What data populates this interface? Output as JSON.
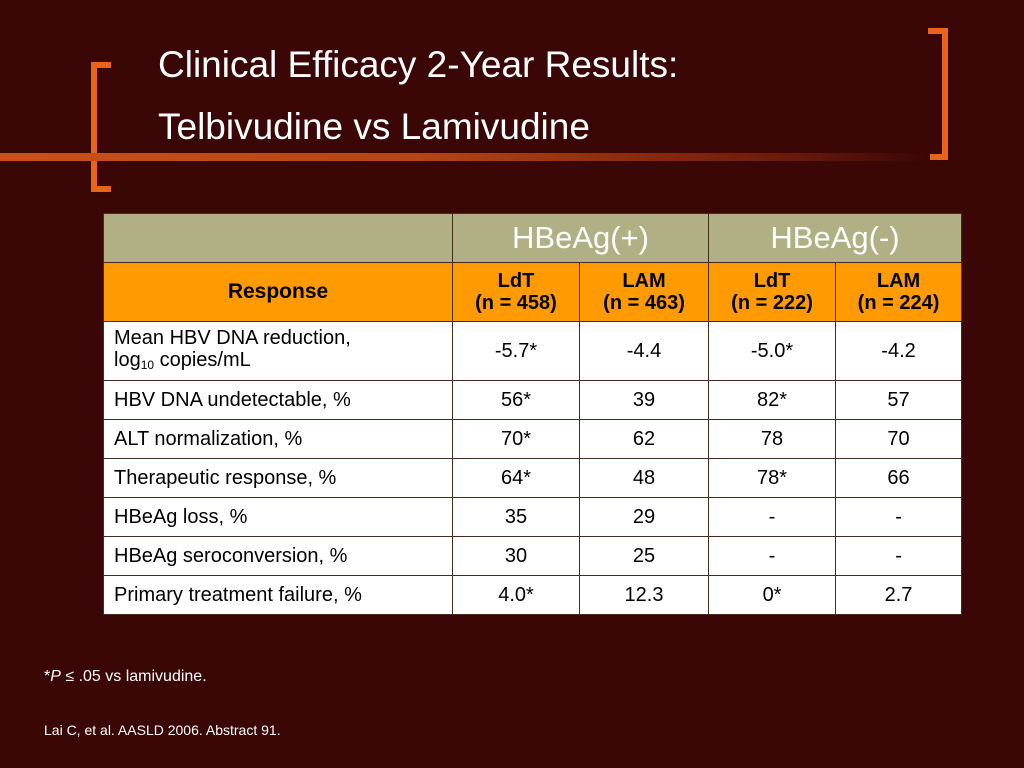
{
  "title": {
    "line1": "Clinical Efficacy 2-Year Results:",
    "line2": "Telbivudine vs Lamivudine"
  },
  "table": {
    "groups": [
      "HBeAg(+)",
      "HBeAg(-)"
    ],
    "response_header": "Response",
    "columns": [
      {
        "drug": "LdT",
        "n": "(n = 458)"
      },
      {
        "drug": "LAM",
        "n": "(n = 463)"
      },
      {
        "drug": "LdT",
        "n": "(n = 222)"
      },
      {
        "drug": "LAM",
        "n": "(n = 224)"
      }
    ],
    "rows": [
      {
        "label_a": "Mean HBV DNA reduction,",
        "label_b_pre": "log",
        "label_b_sub": "10",
        "label_b_post": " copies/mL",
        "values": [
          "-5.7*",
          "-4.4",
          "-5.0*",
          "-4.2"
        ]
      },
      {
        "label": "HBV DNA undetectable, %",
        "values": [
          "56*",
          "39",
          "82*",
          "57"
        ]
      },
      {
        "label": "ALT normalization, %",
        "values": [
          "70*",
          "62",
          "78",
          "70"
        ]
      },
      {
        "label": "Therapeutic response, %",
        "values": [
          "64*",
          "48",
          "78*",
          "66"
        ]
      },
      {
        "label": "HBeAg loss, %",
        "values": [
          "35",
          "29",
          "-",
          "-"
        ]
      },
      {
        "label": "HBeAg seroconversion, %",
        "values": [
          "30",
          "25",
          "-",
          "-"
        ]
      },
      {
        "label": "Primary treatment failure, %",
        "values": [
          "4.0*",
          "12.3",
          "0*",
          "2.7"
        ]
      }
    ]
  },
  "footnote": {
    "star": "*",
    "p": "P",
    "rest": " ≤ .05 vs lamivudine."
  },
  "citation": "Lai C, et al. AASLD 2006. Abstract 91.",
  "colors": {
    "background": "#3a0606",
    "accent": "#e8641a",
    "group_header": "#b1b084",
    "sub_header": "#ff9a00"
  }
}
